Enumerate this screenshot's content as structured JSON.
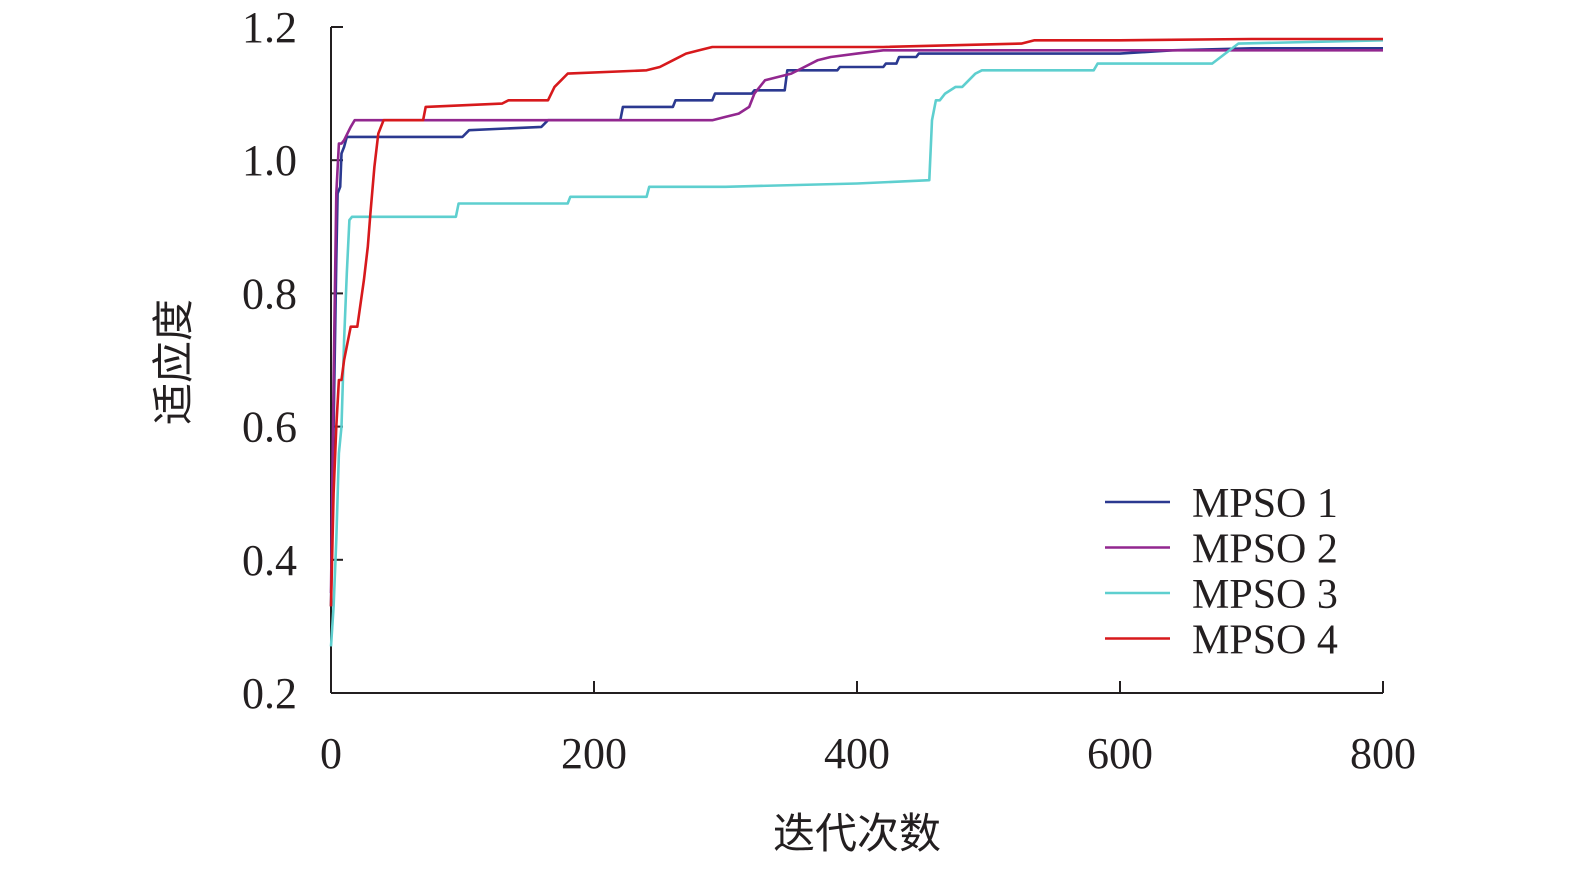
{
  "chart_data": {
    "type": "line",
    "xlabel": "迭代次数",
    "ylabel": "适应度",
    "xlim": [
      0,
      800
    ],
    "ylim": [
      0.2,
      1.2
    ],
    "xticks": [
      0,
      200,
      400,
      600,
      800
    ],
    "yticks": [
      0.2,
      0.4,
      0.6,
      0.8,
      1.0,
      1.2
    ],
    "xtick_labels": [
      "0",
      "200",
      "400",
      "600",
      "800"
    ],
    "ytick_labels": [
      "0.2",
      "0.4",
      "0.6",
      "0.8",
      "1.0",
      "1.2"
    ],
    "legend_position": "bottom-right",
    "series": [
      {
        "name": "MPSO 1",
        "color": "#2b3990",
        "x": [
          0,
          2,
          4,
          5,
          7,
          8,
          10,
          12,
          100,
          105,
          160,
          165,
          220,
          222,
          260,
          262,
          290,
          292,
          320,
          322,
          345,
          347,
          385,
          387,
          420,
          422,
          430,
          432,
          445,
          447,
          600,
          640,
          700,
          800
        ],
        "y": [
          0.33,
          0.6,
          0.85,
          0.95,
          0.96,
          1.01,
          1.02,
          1.035,
          1.035,
          1.045,
          1.05,
          1.06,
          1.06,
          1.08,
          1.08,
          1.09,
          1.09,
          1.1,
          1.1,
          1.105,
          1.105,
          1.135,
          1.135,
          1.14,
          1.14,
          1.145,
          1.145,
          1.155,
          1.155,
          1.16,
          1.16,
          1.165,
          1.168,
          1.168
        ]
      },
      {
        "name": "MPSO 2",
        "color": "#92278f",
        "x": [
          0,
          2,
          4,
          6,
          8,
          10,
          15,
          18,
          100,
          290,
          300,
          310,
          318,
          322,
          326,
          330,
          350,
          360,
          370,
          380,
          400,
          420,
          500,
          800
        ],
        "y": [
          0.35,
          0.67,
          0.95,
          1.025,
          1.025,
          1.03,
          1.05,
          1.06,
          1.06,
          1.06,
          1.065,
          1.07,
          1.08,
          1.1,
          1.11,
          1.12,
          1.13,
          1.14,
          1.15,
          1.155,
          1.16,
          1.165,
          1.165,
          1.165
        ]
      },
      {
        "name": "MPSO 3",
        "color": "#5ecfcf",
        "x": [
          0,
          2,
          4,
          6,
          8,
          10,
          12,
          14,
          16,
          95,
          97,
          180,
          182,
          240,
          242,
          300,
          400,
          455,
          457,
          460,
          463,
          467,
          475,
          480,
          490,
          495,
          580,
          583,
          670,
          680,
          690,
          800
        ],
        "y": [
          0.27,
          0.33,
          0.43,
          0.56,
          0.6,
          0.73,
          0.83,
          0.91,
          0.915,
          0.915,
          0.935,
          0.935,
          0.945,
          0.945,
          0.96,
          0.96,
          0.965,
          0.97,
          1.06,
          1.09,
          1.09,
          1.1,
          1.11,
          1.11,
          1.13,
          1.135,
          1.135,
          1.145,
          1.145,
          1.16,
          1.175,
          1.18
        ]
      },
      {
        "name": "MPSO 4",
        "color": "#d7191c",
        "x": [
          0,
          2,
          4,
          6,
          8,
          10,
          15,
          20,
          25,
          28,
          30,
          33,
          36,
          40,
          70,
          72,
          130,
          135,
          165,
          170,
          175,
          180,
          240,
          250,
          260,
          270,
          280,
          290,
          320,
          350,
          420,
          525,
          535,
          600,
          700,
          800
        ],
        "y": [
          0.33,
          0.5,
          0.6,
          0.67,
          0.67,
          0.7,
          0.75,
          0.75,
          0.82,
          0.87,
          0.92,
          0.99,
          1.04,
          1.06,
          1.06,
          1.08,
          1.085,
          1.09,
          1.09,
          1.11,
          1.12,
          1.13,
          1.135,
          1.14,
          1.15,
          1.16,
          1.165,
          1.17,
          1.17,
          1.17,
          1.17,
          1.175,
          1.18,
          1.18,
          1.182,
          1.182
        ]
      }
    ]
  }
}
